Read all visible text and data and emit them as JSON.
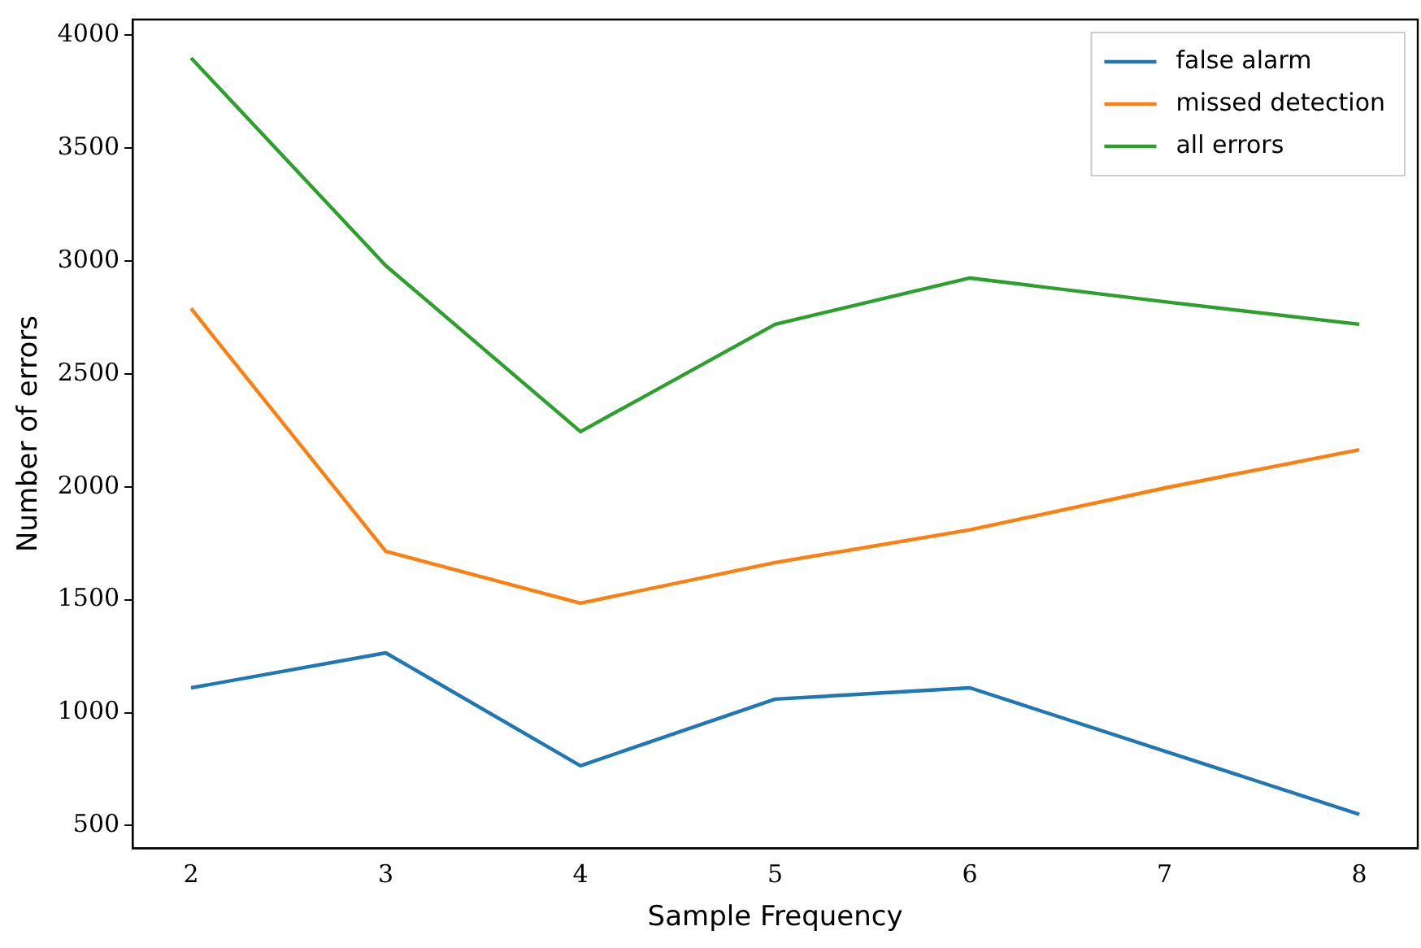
{
  "chart_data": {
    "type": "line",
    "xlabel": "Sample Frequency",
    "ylabel": "Number of errors",
    "x": [
      2,
      3,
      4,
      5,
      6,
      7,
      8
    ],
    "series": [
      {
        "name": "false alarm",
        "color": "#1f77b4",
        "values": [
          1110,
          1265,
          765,
          1060,
          1110,
          830,
          550
        ]
      },
      {
        "name": "missed detection",
        "color": "#ff7f0e",
        "values": [
          2790,
          1715,
          1485,
          1665,
          1810,
          1995,
          2165
        ]
      },
      {
        "name": "all errors",
        "color": "#2ca02c",
        "values": [
          3900,
          2980,
          2245,
          2720,
          2925,
          2820,
          2720
        ]
      }
    ],
    "xlim": [
      1.7,
      8.3
    ],
    "xticks": [
      2,
      3,
      4,
      5,
      6,
      7,
      8
    ],
    "ylim": [
      400,
      4070
    ],
    "yticks": [
      500,
      1000,
      1500,
      2000,
      2500,
      3000,
      3500,
      4000
    ],
    "grid": false,
    "legend": "top right",
    "marker": "none",
    "line_style": "solid"
  }
}
